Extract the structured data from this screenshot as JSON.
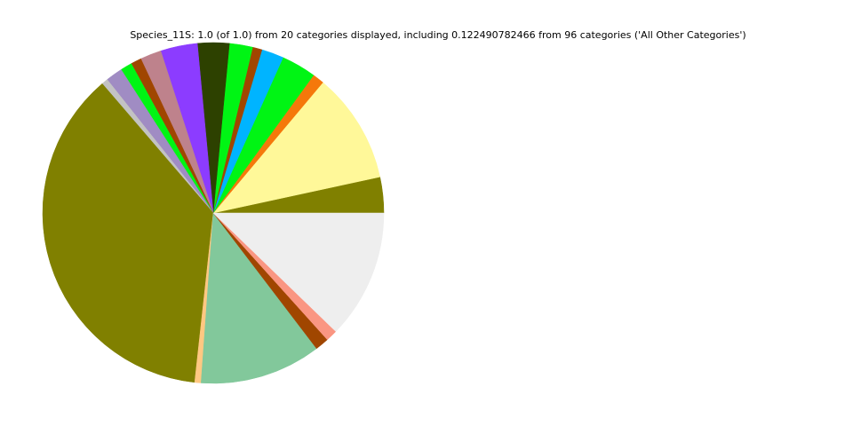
{
  "chart_data": {
    "type": "pie",
    "title": "Species_11S: 1.0 (of 1.0) from 20 categories displayed, including 0.122490782466 from 96 categories ('All Other Categories')",
    "start_angle_deg": 0,
    "direction": "counterclockwise",
    "legend": "none",
    "slices": [
      {
        "value": 0.034,
        "color": "#808000"
      },
      {
        "value": 0.105,
        "color": "#fff899"
      },
      {
        "value": 0.011,
        "color": "#f5780a"
      },
      {
        "value": 0.033,
        "color": "#00f514"
      },
      {
        "value": 0.021,
        "color": "#00b4ff"
      },
      {
        "value": 0.009,
        "color": "#a04600"
      },
      {
        "value": 0.022,
        "color": "#00f514"
      },
      {
        "value": 0.03,
        "color": "#2d4100"
      },
      {
        "value": 0.035,
        "color": "#8c3cff"
      },
      {
        "value": 0.02,
        "color": "#be828c"
      },
      {
        "value": 0.01,
        "color": "#a04600"
      },
      {
        "value": 0.011,
        "color": "#00f514"
      },
      {
        "value": 0.016,
        "color": "#a08cc3"
      },
      {
        "value": 0.006,
        "color": "#c3c3c3"
      },
      {
        "value": 0.37,
        "color": "#808000"
      },
      {
        "value": 0.006,
        "color": "#ffc882"
      },
      {
        "value": 0.115,
        "color": "#82c89b"
      },
      {
        "value": 0.013,
        "color": "#a04600"
      },
      {
        "value": 0.011,
        "color": "#fa9682"
      },
      {
        "value": 0.1225,
        "color": "#eeeeee",
        "label": "All Other Categories"
      }
    ]
  }
}
